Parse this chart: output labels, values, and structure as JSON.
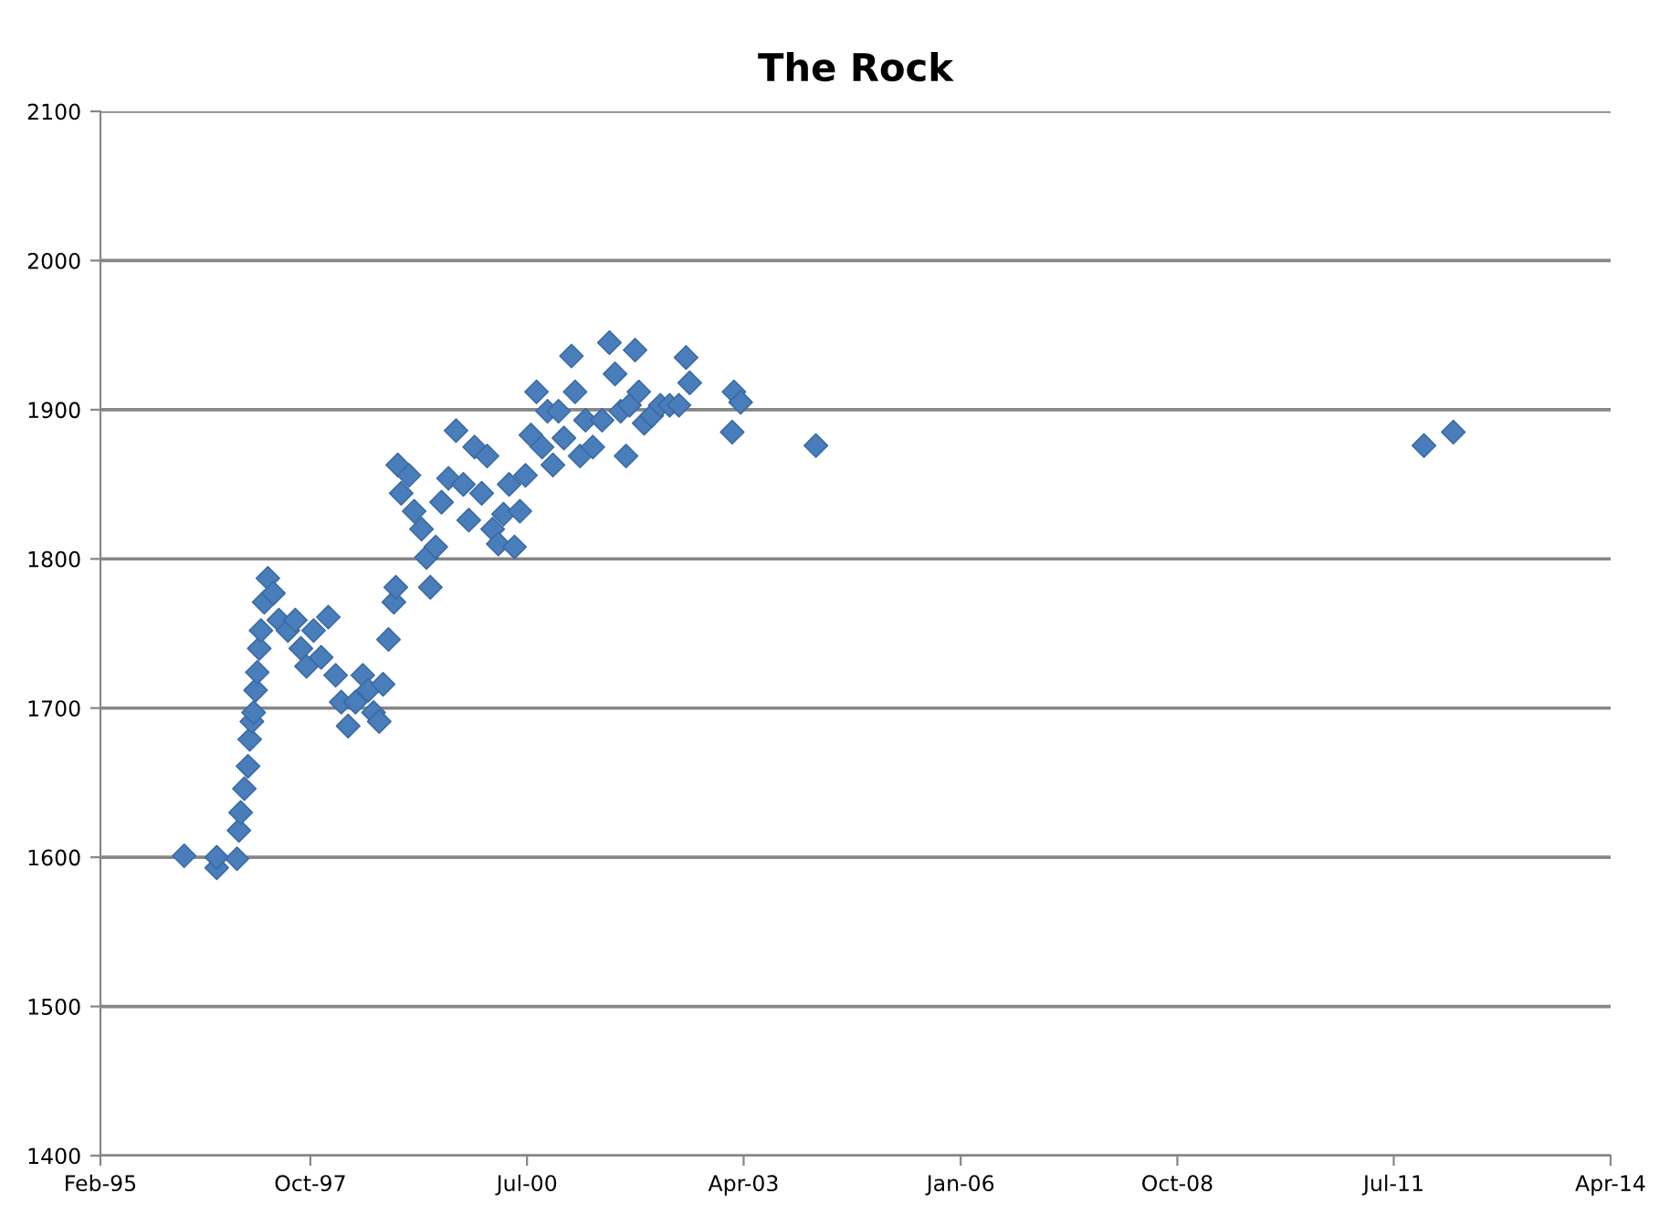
{
  "chart_data": {
    "type": "scatter",
    "title": "The Rock",
    "marker": "diamond",
    "grid": "y",
    "legend": false,
    "xlim": [
      "1995-02-01",
      "2014-04-01"
    ],
    "xticks": [
      {
        "value": "1995-02-01",
        "label": "Feb-95"
      },
      {
        "value": "1997-10-01",
        "label": "Oct-97"
      },
      {
        "value": "2000-07-01",
        "label": "Jul-00"
      },
      {
        "value": "2003-04-01",
        "label": "Apr-03"
      },
      {
        "value": "2006-01-01",
        "label": "Jan-06"
      },
      {
        "value": "2008-10-01",
        "label": "Oct-08"
      },
      {
        "value": "2011-07-01",
        "label": "Jul-11"
      },
      {
        "value": "2014-04-01",
        "label": "Apr-14"
      }
    ],
    "ylim": [
      1400,
      2100
    ],
    "yticks": [
      1400,
      1500,
      1600,
      1700,
      1800,
      1900,
      2000,
      2100
    ],
    "series": [
      {
        "color": "#4a7ebb",
        "x": [
          "1996-02-24",
          "1996-07-24",
          "1996-07-24",
          "1996-10-26",
          "1996-11-04",
          "1996-11-12",
          "1996-11-29",
          "1996-12-16",
          "1996-12-24",
          "1997-01-03",
          "1997-01-11",
          "1997-01-20",
          "1997-01-28",
          "1997-02-06",
          "1997-02-14",
          "1997-03-01",
          "1997-03-18",
          "1997-04-13",
          "1997-05-08",
          "1997-06-19",
          "1997-07-23",
          "1997-08-18",
          "1997-09-13",
          "1997-10-16",
          "1997-11-20",
          "1997-12-23",
          "1998-01-26",
          "1998-02-21",
          "1998-03-25",
          "1998-04-28",
          "1998-06-01",
          "1998-06-26",
          "1998-07-21",
          "1998-08-16",
          "1998-09-03",
          "1998-09-28",
          "1998-10-23",
          "1998-11-01",
          "1998-11-10",
          "1998-11-26",
          "1999-01-01",
          "1999-01-25",
          "1999-02-28",
          "1999-03-23",
          "1999-04-10",
          "1999-05-05",
          "1999-06-01",
          "1999-07-03",
          "1999-08-07",
          "1999-09-10",
          "1999-10-05",
          "1999-11-01",
          "1999-12-04",
          "1999-12-29",
          "2000-01-24",
          "2000-02-19",
          "2000-03-14",
          "2000-04-09",
          "2000-05-04",
          "2000-05-29",
          "2000-06-24",
          "2000-07-19",
          "2000-08-14",
          "2000-09-09",
          "2000-10-04",
          "2000-10-29",
          "2000-11-24",
          "2000-12-19",
          "2001-01-23",
          "2001-02-09",
          "2001-03-04",
          "2001-03-29",
          "2001-05-02",
          "2001-06-14",
          "2001-07-18",
          "2001-08-13",
          "2001-09-08",
          "2001-10-03",
          "2001-10-19",
          "2001-11-14",
          "2001-12-01",
          "2001-12-26",
          "2002-01-30",
          "2002-03-11",
          "2002-04-23",
          "2002-06-05",
          "2002-07-08",
          "2002-07-25",
          "2003-02-07",
          "2003-02-15",
          "2003-03-18",
          "2004-03-01",
          "2011-11-18",
          "2012-04-02"
        ],
        "values": [
          1601,
          1593,
          1600,
          1599,
          1618,
          1630,
          1646,
          1661,
          1679,
          1691,
          1697,
          1712,
          1724,
          1740,
          1752,
          1771,
          1787,
          1777,
          1759,
          1752,
          1759,
          1740,
          1728,
          1752,
          1734,
          1761,
          1722,
          1704,
          1688,
          1704,
          1722,
          1712,
          1697,
          1691,
          1716,
          1746,
          1771,
          1781,
          1863,
          1844,
          1856,
          1832,
          1820,
          1801,
          1781,
          1808,
          1838,
          1854,
          1886,
          1850,
          1826,
          1875,
          1844,
          1869,
          1820,
          1810,
          1830,
          1850,
          1808,
          1832,
          1856,
          1883,
          1912,
          1875,
          1899,
          1863,
          1899,
          1881,
          1936,
          1912,
          1869,
          1893,
          1875,
          1893,
          1945,
          1924,
          1899,
          1869,
          1903,
          1940,
          1912,
          1891,
          1896,
          1903,
          1903,
          1903,
          1935,
          1918,
          1885,
          1912,
          1905,
          1876,
          1876,
          1885
        ]
      }
    ]
  }
}
